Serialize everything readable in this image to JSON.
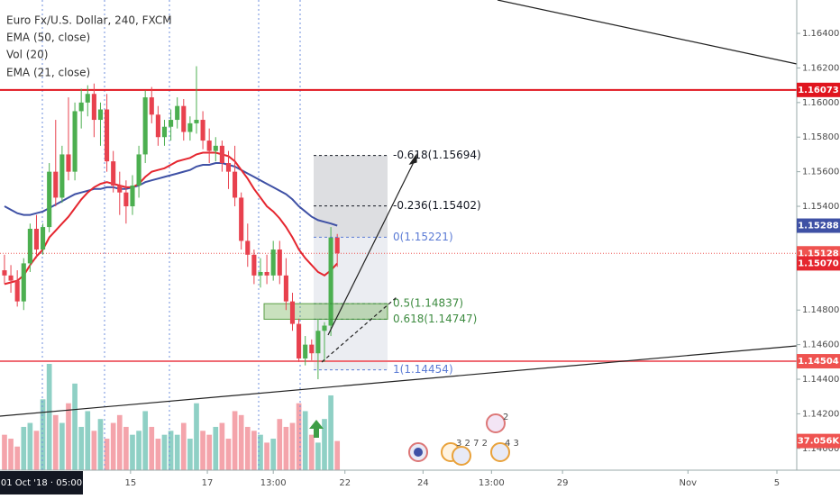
{
  "legend": {
    "symbol": "Euro Fx/U.S. Dollar, 240, FXCM"
  },
  "chart_data": {
    "type": "candlestick",
    "candles": {
      "open": [
        1.1503,
        1.15,
        1.1497,
        1.1485,
        1.1507,
        1.1527,
        1.1515,
        1.1528,
        1.156,
        1.1545,
        1.157,
        1.156,
        1.1595,
        1.16,
        1.1605,
        1.159,
        1.1596,
        1.1566,
        1.1552,
        1.1548,
        1.154,
        1.1552,
        1.157,
        1.1603,
        1.1593,
        1.158,
        1.1586,
        1.159,
        1.1598,
        1.1583,
        1.1588,
        1.159,
        1.1578,
        1.1572,
        1.1575,
        1.1565,
        1.156,
        1.1545,
        1.152,
        1.1512,
        1.15,
        1.1502,
        1.15,
        1.1515,
        1.15,
        1.1485,
        1.1472,
        1.1452,
        1.146,
        1.1455,
        1.1468,
        1.1471,
        1.1522
      ],
      "high": [
        1.1512,
        1.1506,
        1.1503,
        1.151,
        1.153,
        1.1535,
        1.153,
        1.1565,
        1.159,
        1.1575,
        1.1603,
        1.16,
        1.1608,
        1.161,
        1.1611,
        1.16,
        1.1605,
        1.1572,
        1.156,
        1.1555,
        1.1558,
        1.1575,
        1.1607,
        1.1609,
        1.1598,
        1.159,
        1.1596,
        1.1603,
        1.1602,
        1.1592,
        1.1621,
        1.1595,
        1.1585,
        1.158,
        1.1578,
        1.1572,
        1.1575,
        1.1548,
        1.153,
        1.1515,
        1.151,
        1.1512,
        1.152,
        1.152,
        1.151,
        1.149,
        1.1475,
        1.1465,
        1.1463,
        1.1475,
        1.1473,
        1.1528,
        1.1524
      ],
      "low": [
        1.1495,
        1.149,
        1.1482,
        1.148,
        1.1502,
        1.151,
        1.1512,
        1.1525,
        1.154,
        1.1542,
        1.1555,
        1.1555,
        1.1585,
        1.1592,
        1.158,
        1.1575,
        1.156,
        1.1548,
        1.1535,
        1.153,
        1.1535,
        1.1545,
        1.1565,
        1.1588,
        1.1575,
        1.1575,
        1.1578,
        1.1585,
        1.1578,
        1.1578,
        1.1582,
        1.1573,
        1.1565,
        1.1566,
        1.156,
        1.155,
        1.154,
        1.1515,
        1.1505,
        1.1495,
        1.1493,
        1.1495,
        1.1497,
        1.1495,
        1.148,
        1.1468,
        1.145,
        1.1448,
        1.1451,
        1.144,
        1.145,
        1.1465,
        1.1505
      ],
      "close": [
        1.15,
        1.1497,
        1.1485,
        1.1507,
        1.1527,
        1.1515,
        1.1528,
        1.156,
        1.1545,
        1.157,
        1.156,
        1.1595,
        1.16,
        1.1605,
        1.159,
        1.1596,
        1.1566,
        1.1552,
        1.1548,
        1.154,
        1.1552,
        1.157,
        1.1603,
        1.1593,
        1.158,
        1.1586,
        1.159,
        1.1598,
        1.1583,
        1.1588,
        1.159,
        1.1578,
        1.1572,
        1.1575,
        1.1565,
        1.156,
        1.1545,
        1.152,
        1.1512,
        1.15,
        1.1502,
        1.15,
        1.1515,
        1.15,
        1.1485,
        1.1472,
        1.1452,
        1.146,
        1.1455,
        1.1468,
        1.1471,
        1.1522,
        1.15128
      ]
    },
    "up_color": "#4caf50",
    "down_color": "#e8414e",
    "volume": {
      "name": "Vol (20)",
      "up_color": "#8fd0c5",
      "down_color": "#f4a4ab",
      "values": [
        45,
        40,
        30,
        55,
        60,
        50,
        90,
        135,
        70,
        60,
        85,
        110,
        55,
        75,
        50,
        65,
        40,
        60,
        70,
        55,
        45,
        50,
        75,
        55,
        40,
        45,
        50,
        45,
        60,
        40,
        85,
        50,
        45,
        55,
        60,
        40,
        75,
        70,
        55,
        50,
        45,
        35,
        40,
        65,
        55,
        60,
        85,
        75,
        45,
        35,
        65,
        95,
        37.056
      ]
    },
    "series": [
      {
        "name": "EMA (50, close)",
        "color": "#3f51a5",
        "values": [
          1.154,
          1.1538,
          1.1536,
          1.1535,
          1.1535,
          1.1536,
          1.1537,
          1.1539,
          1.1541,
          1.1543,
          1.1545,
          1.1547,
          1.1548,
          1.1549,
          1.155,
          1.155,
          1.1551,
          1.1551,
          1.155,
          1.155,
          1.1551,
          1.1552,
          1.1554,
          1.1555,
          1.1556,
          1.1557,
          1.1558,
          1.1559,
          1.156,
          1.1561,
          1.1563,
          1.1564,
          1.1564,
          1.1565,
          1.1565,
          1.1564,
          1.1563,
          1.1561,
          1.1559,
          1.1557,
          1.1555,
          1.1553,
          1.1551,
          1.1549,
          1.1547,
          1.1544,
          1.154,
          1.1537,
          1.1534,
          1.1532,
          1.1531,
          1.153,
          1.15288
        ]
      },
      {
        "name": "EMA (21, close)",
        "color": "#e5262f",
        "values": [
          1.1495,
          1.1496,
          1.1497,
          1.15,
          1.1506,
          1.1511,
          1.1515,
          1.1522,
          1.1526,
          1.153,
          1.1534,
          1.1539,
          1.1544,
          1.1548,
          1.1551,
          1.1553,
          1.1554,
          1.1553,
          1.1552,
          1.1551,
          1.1551,
          1.1553,
          1.1557,
          1.156,
          1.1561,
          1.1562,
          1.1564,
          1.1566,
          1.1567,
          1.1568,
          1.157,
          1.1571,
          1.1571,
          1.1571,
          1.157,
          1.1569,
          1.1566,
          1.1561,
          1.1556,
          1.155,
          1.1545,
          1.154,
          1.1537,
          1.1533,
          1.1528,
          1.1522,
          1.1515,
          1.151,
          1.1506,
          1.1502,
          1.15,
          1.1503,
          1.1507
        ]
      }
    ],
    "ylim": [
      1.13874,
      1.16593
    ],
    "yticks": [
      {
        "value": 1.14,
        "label": "1.14000"
      },
      {
        "value": 1.142,
        "label": "1.14200"
      },
      {
        "value": 1.144,
        "label": "1.14400"
      },
      {
        "value": 1.146,
        "label": "1.14600"
      },
      {
        "value": 1.148,
        "label": "1.14800"
      },
      {
        "value": 1.154,
        "label": "1.15400"
      },
      {
        "value": 1.156,
        "label": "1.15600"
      },
      {
        "value": 1.158,
        "label": "1.15800"
      },
      {
        "value": 1.16,
        "label": "1.16000"
      },
      {
        "value": 1.162,
        "label": "1.16200"
      },
      {
        "value": 1.164,
        "label": "1.16400"
      }
    ],
    "xlim": [
      -0.7,
      123.8
    ],
    "xticks": [
      {
        "value": 19.7,
        "label": "15"
      },
      {
        "value": 31.7,
        "label": "17"
      },
      {
        "value": 42,
        "label": "13:00"
      },
      {
        "value": 53.2,
        "label": "22"
      },
      {
        "value": 65.4,
        "label": "24"
      },
      {
        "value": 76.1,
        "label": "13:00"
      },
      {
        "value": 87.2,
        "label": "29"
      },
      {
        "value": 106.8,
        "label": "Nov"
      },
      {
        "value": 120.7,
        "label": "5"
      }
    ],
    "crosshair_time": "01 Oct '18 · 05:00",
    "fib_levels": [
      {
        "label": "-0.618(1.15694)",
        "price": 1.15694,
        "color": "#131722"
      },
      {
        "label": "-0.236(1.15402)",
        "price": 1.15402,
        "color": "#131722"
      },
      {
        "label": "0(1.15221)",
        "price": 1.15221,
        "color": "#5b7bd5"
      },
      {
        "label": "0.5(1.14837)",
        "price": 1.14837,
        "color": "#3d8b40"
      },
      {
        "label": "0.618(1.14747)",
        "price": 1.14747,
        "color": "#3d8b40"
      },
      {
        "label": "1(1.14454)",
        "price": 1.14454,
        "color": "#5b7bd5"
      }
    ],
    "horizontal_lines": [
      {
        "price": 1.16073,
        "color": "#e0141e"
      },
      {
        "price": 1.14504,
        "color": "#ef6b73"
      }
    ],
    "price_tags": [
      {
        "value": 1.16073,
        "label": "1.16073",
        "color": "#e0141e"
      },
      {
        "value": 1.15288,
        "label": "1.15288",
        "color": "#3f51a5"
      },
      {
        "value": 1.15128,
        "label": "1.15128",
        "color": "#ef5350"
      },
      {
        "value": 1.1507,
        "label": "1.15070",
        "color": "#e5262f"
      },
      {
        "value": 1.14504,
        "label": "1.14504",
        "color": "#ef5350"
      }
    ],
    "volume_tag": {
      "value": 37.056,
      "label": "37.056K",
      "color": "#ef5350"
    },
    "events": [
      "3 2 7 2",
      "2",
      "4 3"
    ]
  }
}
